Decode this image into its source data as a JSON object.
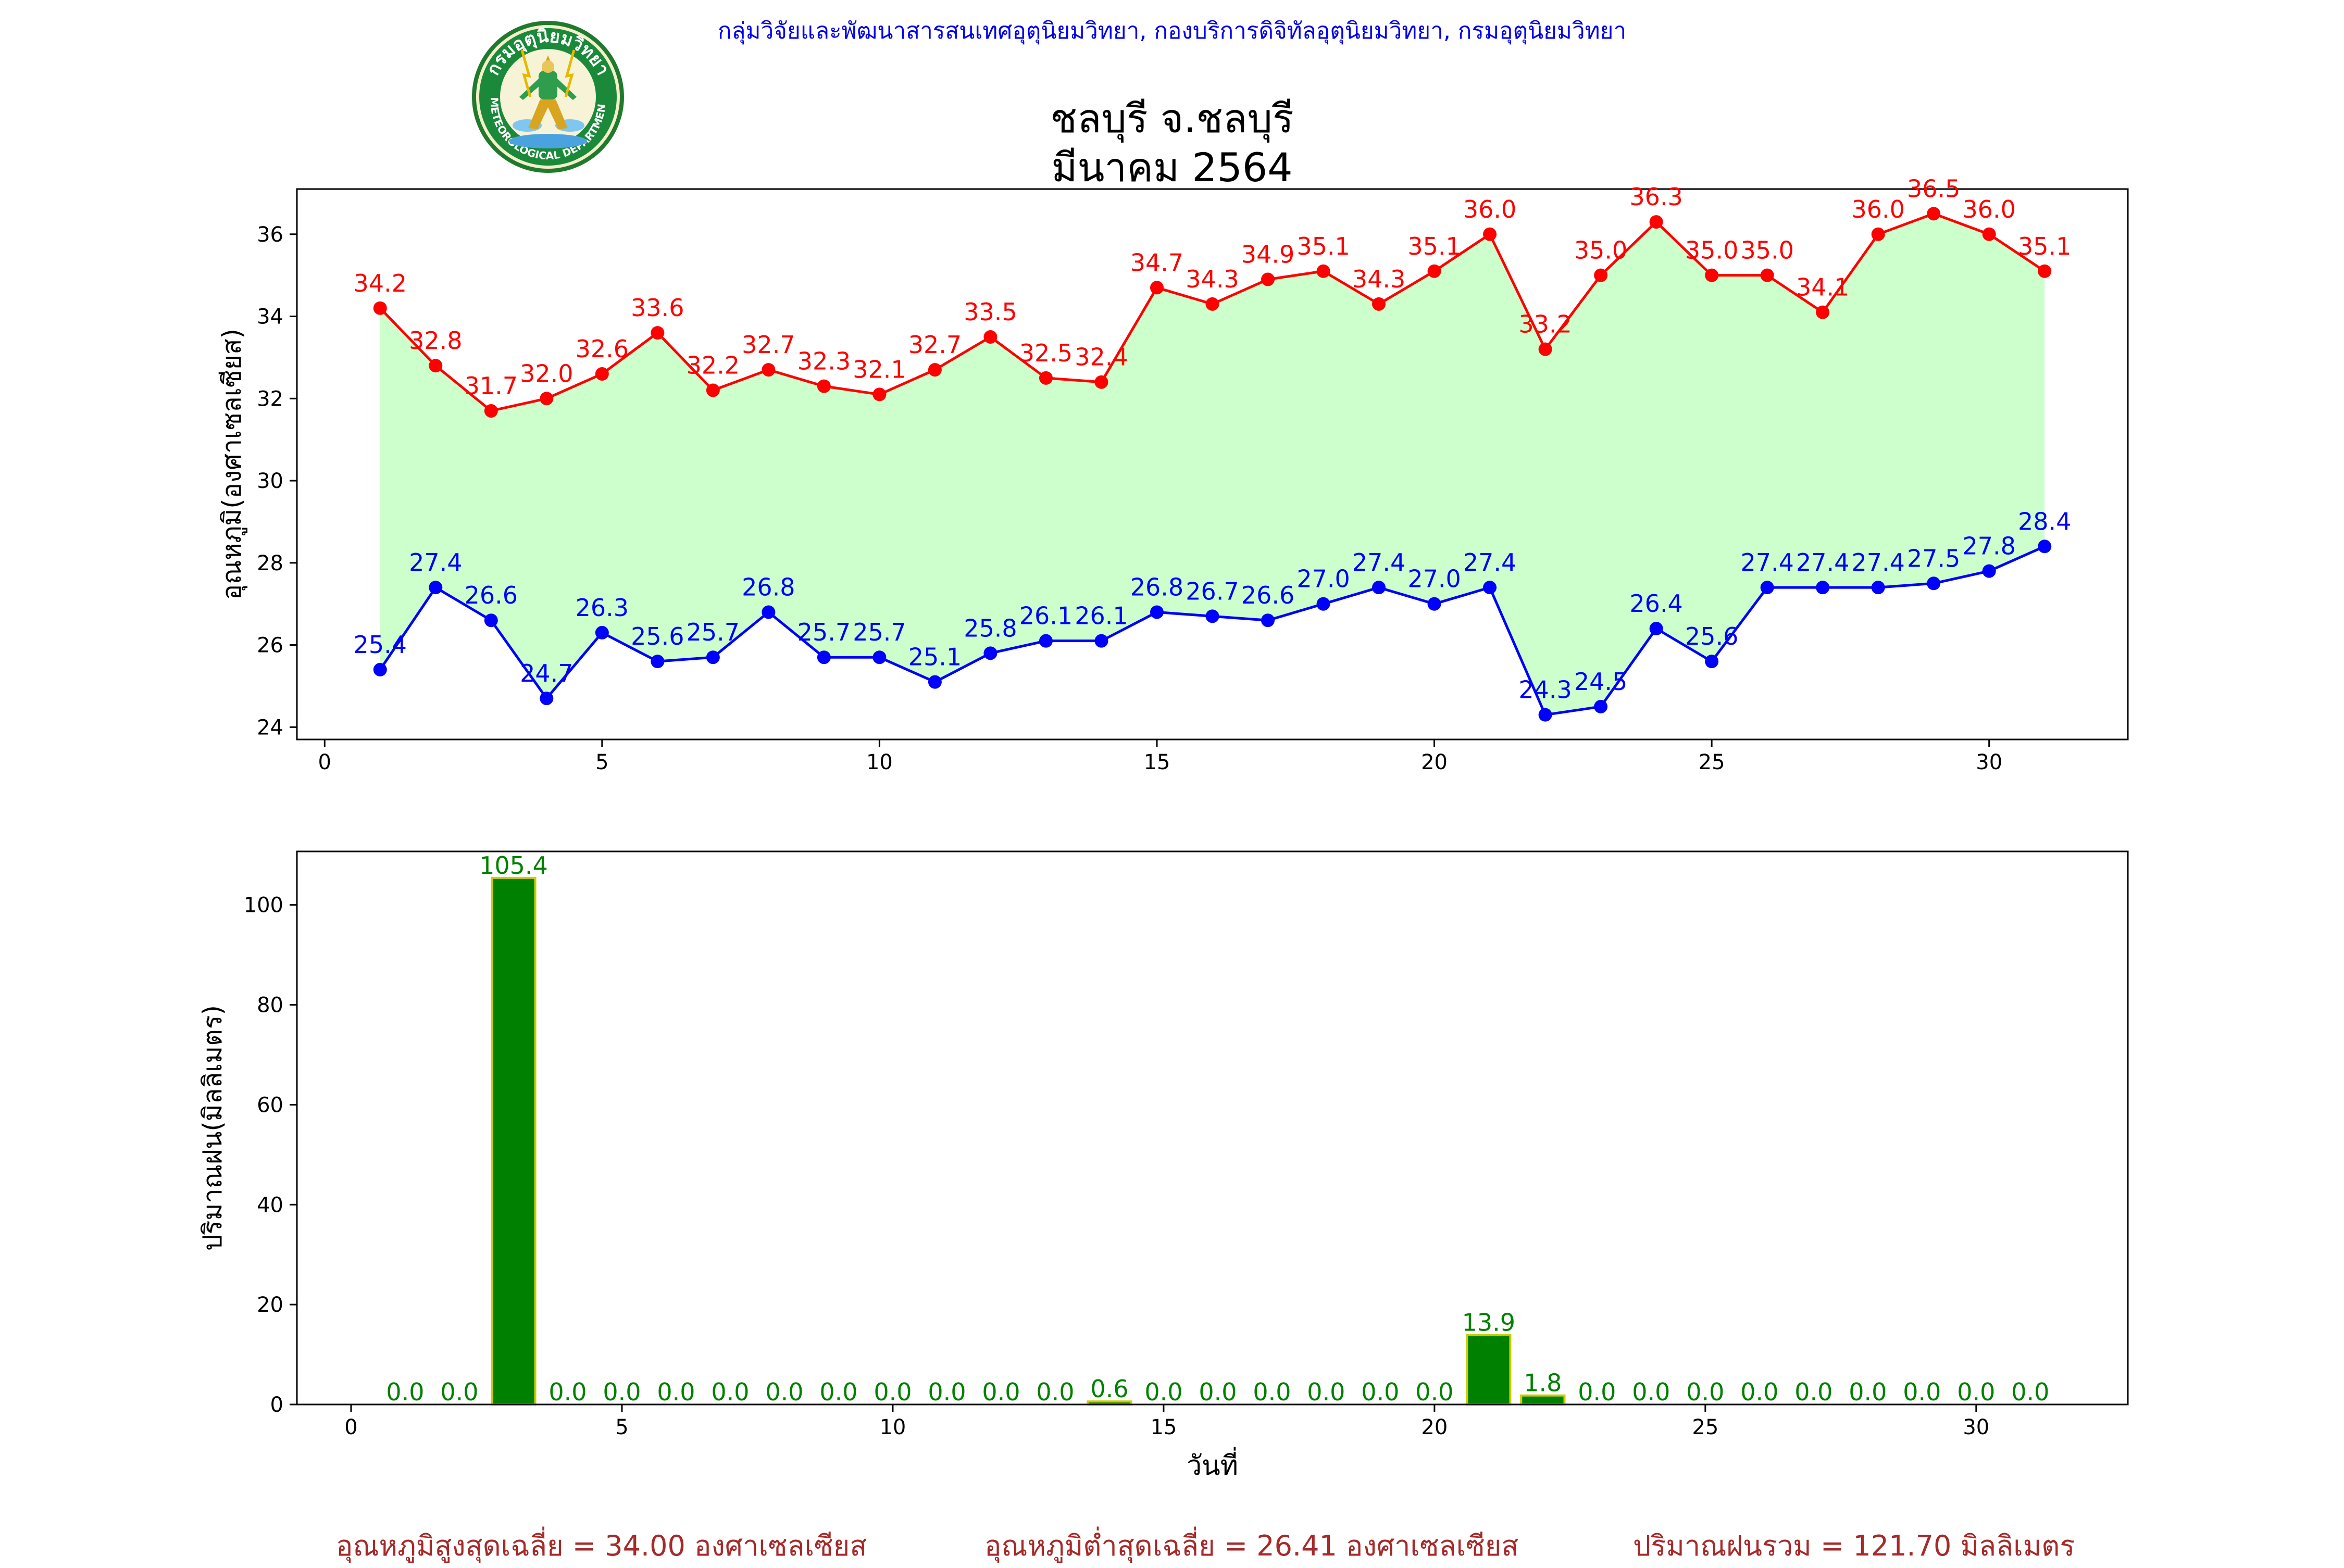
{
  "header": {
    "organization": "กลุ่มวิจัยและพัฒนาสารสนเทศอุตุนิยมวิทยา, กองบริการดิจิทัลอุตุนิยมวิทยา, กรมอุตุนิยมวิทยา",
    "title_line1": "ชลบุรี จ.ชลบุรี",
    "title_line2": "มีนาคม 2564",
    "logo": {
      "icon": "meteorological-department-seal-icon",
      "text_top": "กรมอุตุนิยมวิทยา",
      "text_bottom": "METEOROLOGICAL DEPARTMENT"
    }
  },
  "summary": {
    "avg_max": "อุณหภูมิสูงสุดเฉลี่ย = 34.00 องศาเซลเซียส",
    "avg_min": "อุณหภูมิต่ำสุดเฉลี่ย = 26.41 องศาเซลเซียส",
    "rain_total": "ปริมาณฝนรวม = 121.70 มิลลิเมตร"
  },
  "colors": {
    "max_line": "#ff0000",
    "min_line": "#0000ff",
    "fill": "#ccffcc",
    "bar": "#008000",
    "bar_edge": "#cccc00",
    "bar_label": "#008000",
    "summary_text": "#a52a2a",
    "org_text": "#0000ee"
  },
  "chart_data": [
    {
      "type": "line",
      "ylabel": "อุณหภูมิ(องศาเซลเซียส)",
      "xlim": [
        -0.5,
        32.5
      ],
      "ylim": [
        23.7,
        37.1
      ],
      "xticks": [
        0,
        5,
        10,
        15,
        20,
        25,
        30
      ],
      "yticks": [
        24,
        26,
        28,
        30,
        32,
        34,
        36
      ],
      "grid": false,
      "x": [
        1,
        2,
        3,
        4,
        5,
        6,
        7,
        8,
        9,
        10,
        11,
        12,
        13,
        14,
        15,
        16,
        17,
        18,
        19,
        20,
        21,
        22,
        23,
        24,
        25,
        26,
        27,
        28,
        29,
        30,
        31
      ],
      "series": [
        {
          "values": [
            34.2,
            32.8,
            31.7,
            32.0,
            32.6,
            33.6,
            32.2,
            32.7,
            32.3,
            32.1,
            32.7,
            33.5,
            32.5,
            32.4,
            34.7,
            34.3,
            34.9,
            35.1,
            34.3,
            35.1,
            36.0,
            33.2,
            35.0,
            36.3,
            35.0,
            35.0,
            34.1,
            36.0,
            36.5,
            36.0,
            35.1
          ]
        },
        {
          "values": [
            25.4,
            27.4,
            26.6,
            24.7,
            26.3,
            25.6,
            25.7,
            26.8,
            25.7,
            25.7,
            25.1,
            25.8,
            26.1,
            26.1,
            26.8,
            26.7,
            26.6,
            27.0,
            27.4,
            27.0,
            27.4,
            24.3,
            24.5,
            26.4,
            25.6,
            27.4,
            27.4,
            27.4,
            27.5,
            27.8,
            28.4
          ]
        }
      ]
    },
    {
      "type": "bar",
      "xlabel": "วันที่",
      "ylabel": "ปริมาณฝน(มิลลิเมตร)",
      "xlim": [
        -1,
        32.8
      ],
      "ylim": [
        0,
        110.7
      ],
      "xticks": [
        0,
        5,
        10,
        15,
        20,
        25,
        30
      ],
      "yticks": [
        0,
        20,
        40,
        60,
        80,
        100
      ],
      "grid": false,
      "x": [
        1,
        2,
        3,
        4,
        5,
        6,
        7,
        8,
        9,
        10,
        11,
        12,
        13,
        14,
        15,
        16,
        17,
        18,
        19,
        20,
        21,
        22,
        23,
        24,
        25,
        26,
        27,
        28,
        29,
        30,
        31
      ],
      "values": [
        0.0,
        0.0,
        105.4,
        0.0,
        0.0,
        0.0,
        0.0,
        0.0,
        0.0,
        0.0,
        0.0,
        0.0,
        0.0,
        0.6,
        0.0,
        0.0,
        0.0,
        0.0,
        0.0,
        0.0,
        13.9,
        1.8,
        0.0,
        0.0,
        0.0,
        0.0,
        0.0,
        0.0,
        0.0,
        0.0,
        0.0
      ]
    }
  ]
}
